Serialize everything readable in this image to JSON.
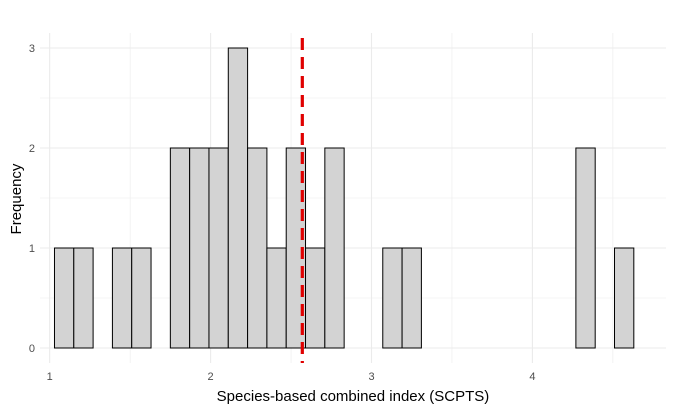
{
  "chart_data": {
    "type": "bar",
    "subtype": "histogram",
    "title": "",
    "xlabel": "Species-based combined index (SCPTS)",
    "ylabel": "Frequency",
    "xlim": [
      0.94,
      4.83
    ],
    "ylim": [
      -0.15,
      3.15
    ],
    "x_ticks": [
      1,
      2,
      3,
      4
    ],
    "y_ticks": [
      0,
      1,
      2,
      3
    ],
    "grid": true,
    "legend": "none",
    "bin_width": 0.12,
    "bins": [
      {
        "x0": 1.03,
        "x1": 1.15,
        "count": 1
      },
      {
        "x0": 1.15,
        "x1": 1.27,
        "count": 1
      },
      {
        "x0": 1.27,
        "x1": 1.39,
        "count": 0
      },
      {
        "x0": 1.39,
        "x1": 1.51,
        "count": 1
      },
      {
        "x0": 1.51,
        "x1": 1.63,
        "count": 1
      },
      {
        "x0": 1.63,
        "x1": 1.75,
        "count": 0
      },
      {
        "x0": 1.75,
        "x1": 1.87,
        "count": 2
      },
      {
        "x0": 1.87,
        "x1": 1.99,
        "count": 2
      },
      {
        "x0": 1.99,
        "x1": 2.11,
        "count": 2
      },
      {
        "x0": 2.11,
        "x1": 2.23,
        "count": 3
      },
      {
        "x0": 2.23,
        "x1": 2.35,
        "count": 2
      },
      {
        "x0": 2.35,
        "x1": 2.47,
        "count": 1
      },
      {
        "x0": 2.47,
        "x1": 2.59,
        "count": 2
      },
      {
        "x0": 2.59,
        "x1": 2.71,
        "count": 1
      },
      {
        "x0": 2.71,
        "x1": 2.83,
        "count": 2
      },
      {
        "x0": 2.83,
        "x1": 2.95,
        "count": 0
      },
      {
        "x0": 2.95,
        "x1": 3.07,
        "count": 0
      },
      {
        "x0": 3.07,
        "x1": 3.19,
        "count": 1
      },
      {
        "x0": 3.19,
        "x1": 3.31,
        "count": 1
      },
      {
        "x0": 3.31,
        "x1": 3.43,
        "count": 0
      },
      {
        "x0": 3.43,
        "x1": 3.55,
        "count": 0
      },
      {
        "x0": 3.55,
        "x1": 3.67,
        "count": 0
      },
      {
        "x0": 3.67,
        "x1": 3.79,
        "count": 0
      },
      {
        "x0": 3.79,
        "x1": 3.91,
        "count": 0
      },
      {
        "x0": 3.91,
        "x1": 4.03,
        "count": 0
      },
      {
        "x0": 4.03,
        "x1": 4.15,
        "count": 0
      },
      {
        "x0": 4.15,
        "x1": 4.27,
        "count": 0
      },
      {
        "x0": 4.27,
        "x1": 4.39,
        "count": 2
      },
      {
        "x0": 4.39,
        "x1": 4.51,
        "count": 0
      },
      {
        "x0": 4.51,
        "x1": 4.63,
        "count": 1
      }
    ],
    "reference_line": {
      "x": 2.57,
      "color": "#e00000",
      "style": "dashed"
    },
    "bar_fill": "#d3d3d3",
    "bar_stroke": "#000000",
    "grid_color": "#ebebeb"
  }
}
